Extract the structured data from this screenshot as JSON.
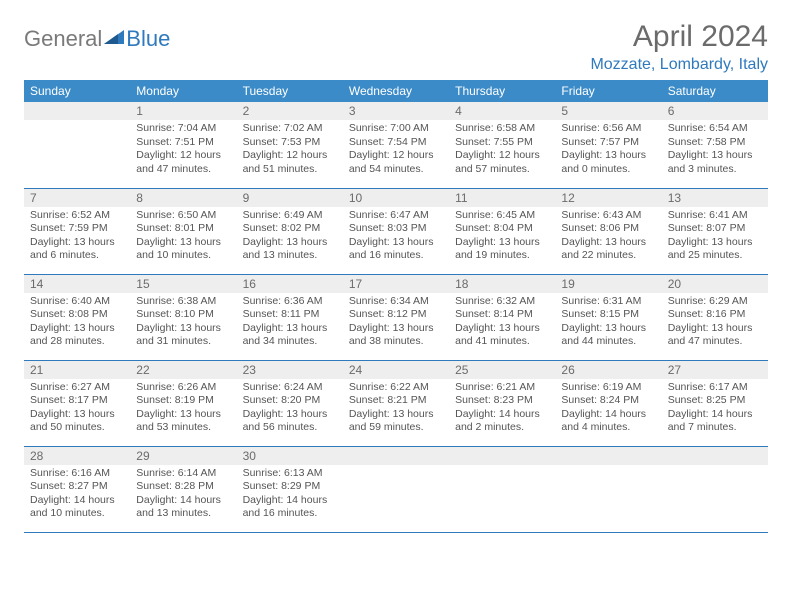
{
  "logo": {
    "general": "General",
    "blue": "Blue"
  },
  "title": "April 2024",
  "location": "Mozzate, Lombardy, Italy",
  "colors": {
    "header_bg": "#3b8bc8",
    "header_text": "#ffffff",
    "daynum_bg": "#eeeeee",
    "daynum_text": "#6b6b6b",
    "border": "#2f79bd",
    "body_text": "#555555",
    "title_text": "#6b6b6b",
    "location_text": "#2f79bd",
    "logo_gray": "#7a7a7a",
    "logo_blue": "#2f79bd",
    "page_bg": "#ffffff"
  },
  "typography": {
    "title_fontsize": 30,
    "location_fontsize": 16,
    "header_fontsize": 12,
    "daynum_fontsize": 12,
    "body_fontsize": 10.5,
    "font_family": "Arial"
  },
  "calendar": {
    "type": "table",
    "columns": [
      "Sunday",
      "Monday",
      "Tuesday",
      "Wednesday",
      "Thursday",
      "Friday",
      "Saturday"
    ],
    "first_weekday_index": 1,
    "days": [
      {
        "n": 1,
        "sunrise": "7:04 AM",
        "sunset": "7:51 PM",
        "daylight": "12 hours and 47 minutes."
      },
      {
        "n": 2,
        "sunrise": "7:02 AM",
        "sunset": "7:53 PM",
        "daylight": "12 hours and 51 minutes."
      },
      {
        "n": 3,
        "sunrise": "7:00 AM",
        "sunset": "7:54 PM",
        "daylight": "12 hours and 54 minutes."
      },
      {
        "n": 4,
        "sunrise": "6:58 AM",
        "sunset": "7:55 PM",
        "daylight": "12 hours and 57 minutes."
      },
      {
        "n": 5,
        "sunrise": "6:56 AM",
        "sunset": "7:57 PM",
        "daylight": "13 hours and 0 minutes."
      },
      {
        "n": 6,
        "sunrise": "6:54 AM",
        "sunset": "7:58 PM",
        "daylight": "13 hours and 3 minutes."
      },
      {
        "n": 7,
        "sunrise": "6:52 AM",
        "sunset": "7:59 PM",
        "daylight": "13 hours and 6 minutes."
      },
      {
        "n": 8,
        "sunrise": "6:50 AM",
        "sunset": "8:01 PM",
        "daylight": "13 hours and 10 minutes."
      },
      {
        "n": 9,
        "sunrise": "6:49 AM",
        "sunset": "8:02 PM",
        "daylight": "13 hours and 13 minutes."
      },
      {
        "n": 10,
        "sunrise": "6:47 AM",
        "sunset": "8:03 PM",
        "daylight": "13 hours and 16 minutes."
      },
      {
        "n": 11,
        "sunrise": "6:45 AM",
        "sunset": "8:04 PM",
        "daylight": "13 hours and 19 minutes."
      },
      {
        "n": 12,
        "sunrise": "6:43 AM",
        "sunset": "8:06 PM",
        "daylight": "13 hours and 22 minutes."
      },
      {
        "n": 13,
        "sunrise": "6:41 AM",
        "sunset": "8:07 PM",
        "daylight": "13 hours and 25 minutes."
      },
      {
        "n": 14,
        "sunrise": "6:40 AM",
        "sunset": "8:08 PM",
        "daylight": "13 hours and 28 minutes."
      },
      {
        "n": 15,
        "sunrise": "6:38 AM",
        "sunset": "8:10 PM",
        "daylight": "13 hours and 31 minutes."
      },
      {
        "n": 16,
        "sunrise": "6:36 AM",
        "sunset": "8:11 PM",
        "daylight": "13 hours and 34 minutes."
      },
      {
        "n": 17,
        "sunrise": "6:34 AM",
        "sunset": "8:12 PM",
        "daylight": "13 hours and 38 minutes."
      },
      {
        "n": 18,
        "sunrise": "6:32 AM",
        "sunset": "8:14 PM",
        "daylight": "13 hours and 41 minutes."
      },
      {
        "n": 19,
        "sunrise": "6:31 AM",
        "sunset": "8:15 PM",
        "daylight": "13 hours and 44 minutes."
      },
      {
        "n": 20,
        "sunrise": "6:29 AM",
        "sunset": "8:16 PM",
        "daylight": "13 hours and 47 minutes."
      },
      {
        "n": 21,
        "sunrise": "6:27 AM",
        "sunset": "8:17 PM",
        "daylight": "13 hours and 50 minutes."
      },
      {
        "n": 22,
        "sunrise": "6:26 AM",
        "sunset": "8:19 PM",
        "daylight": "13 hours and 53 minutes."
      },
      {
        "n": 23,
        "sunrise": "6:24 AM",
        "sunset": "8:20 PM",
        "daylight": "13 hours and 56 minutes."
      },
      {
        "n": 24,
        "sunrise": "6:22 AM",
        "sunset": "8:21 PM",
        "daylight": "13 hours and 59 minutes."
      },
      {
        "n": 25,
        "sunrise": "6:21 AM",
        "sunset": "8:23 PM",
        "daylight": "14 hours and 2 minutes."
      },
      {
        "n": 26,
        "sunrise": "6:19 AM",
        "sunset": "8:24 PM",
        "daylight": "14 hours and 4 minutes."
      },
      {
        "n": 27,
        "sunrise": "6:17 AM",
        "sunset": "8:25 PM",
        "daylight": "14 hours and 7 minutes."
      },
      {
        "n": 28,
        "sunrise": "6:16 AM",
        "sunset": "8:27 PM",
        "daylight": "14 hours and 10 minutes."
      },
      {
        "n": 29,
        "sunrise": "6:14 AM",
        "sunset": "8:28 PM",
        "daylight": "14 hours and 13 minutes."
      },
      {
        "n": 30,
        "sunrise": "6:13 AM",
        "sunset": "8:29 PM",
        "daylight": "14 hours and 16 minutes."
      }
    ],
    "labels": {
      "sunrise": "Sunrise:",
      "sunset": "Sunset:",
      "daylight": "Daylight:"
    }
  }
}
